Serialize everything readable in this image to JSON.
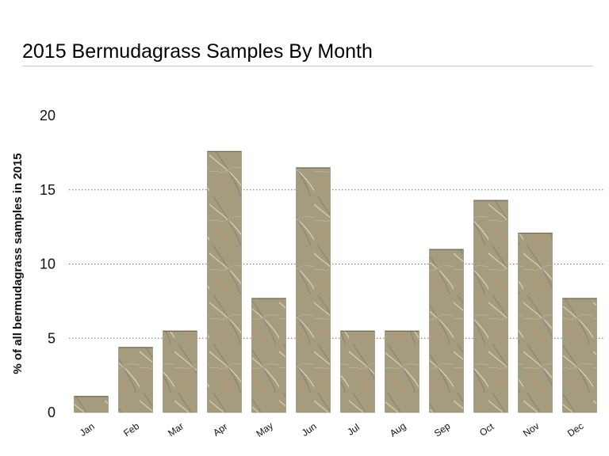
{
  "chart_title": "2015 Bermudagrass Samples By Month",
  "colors": {
    "bar_fill": "#a39a7d",
    "bar_stroke": "#8d8468",
    "grid": "#6f6f6f",
    "title_rule": "#c9c9c9"
  },
  "chart_data": {
    "type": "bar",
    "title": "2015 Bermudagrass Samples By Month",
    "xlabel": "",
    "ylabel": "% of all bermudagrass samples in 2015",
    "categories": [
      "Jan",
      "Feb",
      "Mar",
      "Apr",
      "May",
      "Jun",
      "Jul",
      "Aug",
      "Sep",
      "Oct",
      "Nov",
      "Dec"
    ],
    "values": [
      1.1,
      4.4,
      5.5,
      17.6,
      7.7,
      16.5,
      5.5,
      5.5,
      11.0,
      14.3,
      12.1,
      7.7
    ],
    "ylim": [
      0,
      20
    ],
    "yticks": [
      0,
      5,
      10,
      15,
      20
    ],
    "grid": "horizontal dotted",
    "legend": "none"
  }
}
